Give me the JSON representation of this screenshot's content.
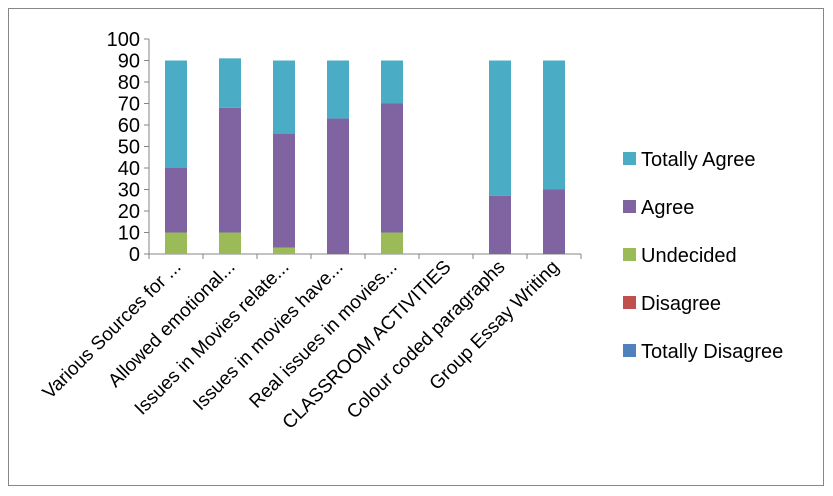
{
  "chart_data": {
    "type": "bar",
    "stacked": true,
    "title": "",
    "xlabel": "",
    "ylabel": "",
    "ylim": [
      0,
      100
    ],
    "ytick_step": 10,
    "grid": false,
    "legend_position": "right",
    "categories": [
      "Various Sources for ...",
      "Allowed emotional...",
      "Issues in Movies relate...",
      "Issues in movies have...",
      "Real issues in movies...",
      "CLASSROOM ACTIVITIES",
      "Colour coded paragraphs",
      "Group Essay Writing"
    ],
    "series": [
      {
        "name": "Totally Disagree",
        "color": "#4F81BD",
        "values": [
          0,
          0,
          0,
          0,
          0,
          0,
          0,
          0
        ]
      },
      {
        "name": "Disagree",
        "color": "#C0504D",
        "values": [
          0,
          0,
          0,
          0,
          0,
          0,
          0,
          0
        ]
      },
      {
        "name": "Undecided",
        "color": "#9BBB59",
        "values": [
          10,
          10,
          3,
          0,
          10,
          0,
          0,
          0
        ]
      },
      {
        "name": "Agree",
        "color": "#8064A2",
        "values": [
          30,
          58,
          53,
          63,
          60,
          0,
          27,
          30
        ]
      },
      {
        "name": "Totally Agree",
        "color": "#4BACC6",
        "values": [
          50,
          23,
          34,
          27,
          20,
          0,
          63,
          60
        ]
      }
    ],
    "legend_order": [
      "Totally Agree",
      "Agree",
      "Undecided",
      "Disagree",
      "Totally Disagree"
    ]
  }
}
